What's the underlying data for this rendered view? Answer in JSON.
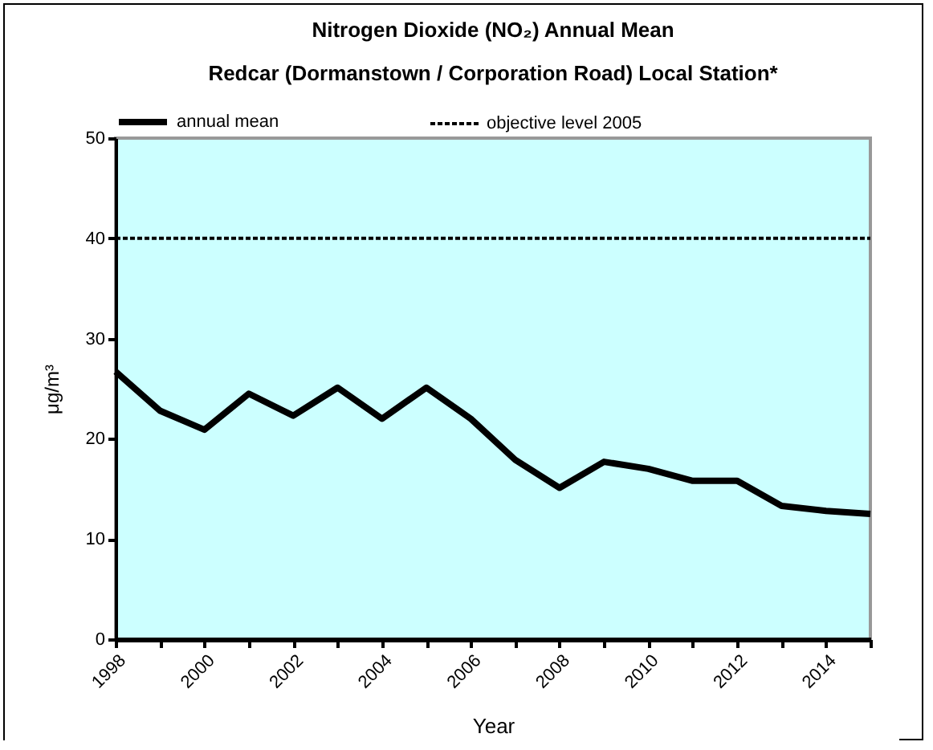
{
  "chart_data": {
    "type": "line",
    "title": "Nitrogen Dioxide (NO₂) Annual Mean",
    "subtitle": "Redcar (Dormanstown / Corporation Road) Local Station*",
    "xlabel": "Year",
    "ylabel": "μg/m³",
    "x": [
      1998,
      1999,
      2000,
      2001,
      2002,
      2003,
      2004,
      2005,
      2006,
      2007,
      2008,
      2009,
      2010,
      2011,
      2012,
      2013,
      2014,
      2015
    ],
    "series": [
      {
        "name": "annual mean",
        "color": "#000000",
        "line_style": "solid",
        "values": [
          26.7,
          22.8,
          20.9,
          24.5,
          22.3,
          25.1,
          22.0,
          25.1,
          22.0,
          17.9,
          15.1,
          17.7,
          17.0,
          15.8,
          15.8,
          13.3,
          12.8,
          12.5
        ]
      },
      {
        "name": "objective level 2005",
        "color": "#000000",
        "line_style": "dashed",
        "values": [
          40,
          40,
          40,
          40,
          40,
          40,
          40,
          40,
          40,
          40,
          40,
          40,
          40,
          40,
          40,
          40,
          40,
          40
        ]
      }
    ],
    "xlim": [
      1998,
      2015
    ],
    "xticks": [
      1998,
      {
        "value": 1999,
        "label": null
      },
      2000,
      {
        "value": 2001,
        "label": null
      },
      2002,
      {
        "value": 2003,
        "label": null
      },
      2004,
      {
        "value": 2005,
        "label": null
      },
      2006,
      {
        "value": 2007,
        "label": null
      },
      2008,
      {
        "value": 2009,
        "label": null
      },
      2010,
      {
        "value": 2011,
        "label": null
      },
      2012,
      {
        "value": 2013,
        "label": null
      },
      2014,
      {
        "value": 2015,
        "label": null
      }
    ],
    "ylim": [
      0,
      50
    ],
    "yticks": [
      0,
      10,
      20,
      30,
      40,
      50
    ],
    "grid": false,
    "legend": "top",
    "marker": "none"
  }
}
